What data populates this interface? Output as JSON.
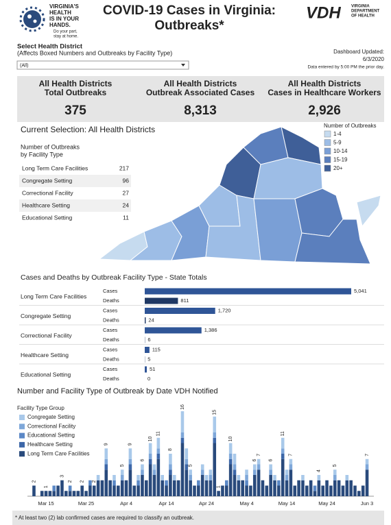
{
  "header": {
    "logo_lines": [
      "VIRGINIA'S",
      "HEALTH",
      "IS IN YOUR",
      "HANDS."
    ],
    "logo_tagline": [
      "Do your part,",
      "stay at home."
    ],
    "title_lines": [
      "COVID-19 Cases in Virginia:",
      "Outbreaks*"
    ],
    "vdh": "VDH",
    "vdh_lines": [
      "VIRGINIA",
      "DEPARTMENT",
      "OF HEALTH"
    ]
  },
  "filter": {
    "label": "Select Health District",
    "note": "(Affects Boxed Numbers and Outbreaks by Facility Type)",
    "selected": "(All)"
  },
  "updated": {
    "label": "Dashboard Updated:",
    "date": "6/3/2020",
    "note": "Data entered by 5:00 PM the prior day."
  },
  "kpis": [
    {
      "label_lines": [
        "All Health Districts",
        "Total Outbreaks"
      ],
      "value": 375
    },
    {
      "label_lines": [
        "All Health Districts",
        "Outbreak Associated Cases"
      ],
      "value": 8313,
      "label": "8,313"
    },
    {
      "label_lines": [
        "All Health Districts",
        "Cases in Healthcare Workers"
      ],
      "value": 2926,
      "label": "2,926"
    }
  ],
  "selection": "Current Selection: All Health Districts",
  "outbreak_table": {
    "title_lines": [
      "Number of Outbreaks",
      "by Facility Type"
    ],
    "rows": [
      [
        "Long Term Care Facilities",
        217
      ],
      [
        "Congregate Setting",
        96
      ],
      [
        "Correctional Facility",
        27
      ],
      [
        "Healthcare Setting",
        24
      ],
      [
        "Educational Setting",
        11
      ]
    ]
  },
  "map": {
    "title": "Number of Outbreaks",
    "legend": [
      {
        "label": "1-4",
        "color": "#c6dbef"
      },
      {
        "label": "5-9",
        "color": "#9dbde6"
      },
      {
        "label": "10-14",
        "color": "#7a9fd6"
      },
      {
        "label": "15-19",
        "color": "#5b7fbd"
      },
      {
        "label": "20+",
        "color": "#3f5f98"
      }
    ]
  },
  "chart_data": [
    {
      "type": "hbar",
      "title": "Cases and Deaths by Outbreak Facility Type - State Totals",
      "categories": [
        "Long Term Care Facilities",
        "Congregate Setting",
        "Correctional Facility",
        "Healthcare Setting",
        "Educational Setting"
      ],
      "series": [
        {
          "name": "Cases",
          "color": "#2f5597",
          "values": [
            5041,
            1720,
            1386,
            115,
            51
          ],
          "value_labels": [
            "5,041",
            "1,720",
            "1,386",
            "115",
            "51"
          ]
        },
        {
          "name": "Deaths",
          "color": "#1f3864",
          "values": [
            811,
            24,
            6,
            5,
            0
          ]
        }
      ]
    },
    {
      "type": "stacked_bar",
      "title": "Number and Facility Type of Outbreak by Date VDH Notified",
      "legend_title": "Facility Type Group",
      "categories": [
        null,
        null,
        null,
        "Mar 15",
        null,
        null,
        null,
        null,
        null,
        null,
        null,
        null,
        null,
        "Mar 25",
        null,
        null,
        null,
        null,
        null,
        null,
        null,
        null,
        null,
        "Apr 4",
        null,
        null,
        null,
        null,
        null,
        null,
        null,
        null,
        null,
        "Apr 14",
        null,
        null,
        null,
        null,
        null,
        null,
        null,
        null,
        null,
        "Apr 24",
        null,
        null,
        null,
        null,
        null,
        null,
        null,
        null,
        null,
        "May 4",
        null,
        null,
        null,
        null,
        null,
        null,
        null,
        null,
        null,
        "May 14",
        null,
        null,
        null,
        null,
        null,
        null,
        null,
        null,
        null,
        "May 24",
        null,
        null,
        null,
        null,
        null,
        null,
        null,
        null,
        null,
        "Jun 3"
      ],
      "series": [
        {
          "name": "Congregate Setting",
          "color": "#a9c9ea",
          "values": [
            0,
            0,
            0,
            0,
            0,
            0,
            0,
            0,
            0,
            0,
            0,
            0,
            0,
            0,
            0,
            0,
            1,
            0,
            2,
            0,
            1,
            0,
            1,
            0,
            2,
            0,
            1,
            1,
            0,
            2,
            1,
            2,
            1,
            0,
            2,
            1,
            0,
            4,
            2,
            1,
            0,
            0,
            1,
            1,
            1,
            3,
            0,
            0,
            0,
            2,
            2,
            1,
            0,
            1,
            0,
            1,
            1,
            0,
            0,
            1,
            1,
            0,
            2,
            1,
            1,
            0,
            0,
            1,
            0,
            0,
            0,
            1,
            0,
            0,
            0,
            1,
            0,
            0,
            1,
            0,
            0,
            0,
            0,
            1
          ]
        },
        {
          "name": "Correctional Facility",
          "color": "#7ea7d9",
          "values": [
            0,
            0,
            0,
            0,
            0,
            0,
            0,
            0,
            0,
            0,
            0,
            0,
            0,
            0,
            0,
            0,
            0,
            0,
            1,
            0,
            0,
            0,
            1,
            0,
            1,
            0,
            0,
            1,
            0,
            1,
            1,
            1,
            0,
            0,
            1,
            0,
            0,
            1,
            1,
            1,
            0,
            0,
            1,
            0,
            1,
            1,
            0,
            0,
            0,
            1,
            1,
            0,
            0,
            1,
            0,
            1,
            1,
            0,
            0,
            1,
            0,
            0,
            1,
            1,
            1,
            0,
            0,
            0,
            0,
            0,
            0,
            0,
            0,
            0,
            0,
            1,
            0,
            0,
            0,
            0,
            0,
            0,
            0,
            1
          ]
        },
        {
          "name": "Educational Setting",
          "color": "#5b88c6",
          "values": [
            0,
            0,
            0,
            0,
            0,
            1,
            0,
            0,
            0,
            1,
            0,
            0,
            0,
            0,
            1,
            0,
            0,
            0,
            0,
            0,
            1,
            0,
            0,
            0,
            0,
            0,
            1,
            0,
            0,
            0,
            0,
            0,
            0,
            1,
            0,
            0,
            0,
            0,
            0,
            0,
            0,
            1,
            0,
            0,
            0,
            0,
            0,
            0,
            1,
            0,
            0,
            0,
            0,
            1,
            0,
            0,
            0,
            0,
            0,
            0,
            0,
            1,
            0,
            0,
            0,
            0,
            0,
            0,
            0,
            0,
            1,
            0,
            0,
            0,
            0,
            0,
            0,
            0,
            0,
            0,
            0,
            0,
            0,
            0
          ]
        },
        {
          "name": "Healthcare Setting",
          "color": "#3d67a8",
          "values": [
            0,
            0,
            0,
            0,
            0,
            0,
            0,
            0,
            0,
            0,
            0,
            0,
            0,
            0,
            0,
            0,
            0,
            0,
            1,
            0,
            0,
            0,
            0,
            0,
            1,
            0,
            0,
            0,
            0,
            1,
            0,
            1,
            0,
            0,
            1,
            0,
            0,
            1,
            1,
            0,
            0,
            0,
            0,
            0,
            0,
            1,
            0,
            0,
            0,
            1,
            1,
            0,
            0,
            0,
            0,
            0,
            0,
            0,
            0,
            0,
            0,
            0,
            1,
            0,
            0,
            0,
            0,
            0,
            0,
            0,
            0,
            0,
            0,
            0,
            0,
            0,
            0,
            0,
            0,
            0,
            0,
            0,
            0,
            0
          ]
        },
        {
          "name": "Long Term Care Facilities",
          "color": "#294a7c",
          "values": [
            2,
            0,
            1,
            1,
            1,
            1,
            2,
            3,
            1,
            1,
            1,
            1,
            2,
            1,
            2,
            2,
            3,
            3,
            5,
            3,
            2,
            2,
            3,
            3,
            5,
            2,
            2,
            4,
            3,
            6,
            4,
            7,
            3,
            2,
            4,
            3,
            3,
            10,
            5,
            3,
            2,
            2,
            4,
            3,
            3,
            10,
            1,
            2,
            2,
            6,
            4,
            3,
            3,
            2,
            2,
            4,
            5,
            3,
            2,
            4,
            3,
            2,
            7,
            3,
            5,
            2,
            3,
            3,
            2,
            3,
            1,
            3,
            2,
            3,
            2,
            3,
            3,
            2,
            3,
            3,
            2,
            1,
            2,
            5
          ]
        }
      ],
      "totals": [
        2,
        null,
        null,
        1,
        null,
        null,
        null,
        3,
        null,
        2,
        null,
        null,
        2,
        null,
        null,
        2,
        null,
        null,
        9,
        null,
        null,
        null,
        5,
        null,
        9,
        null,
        null,
        6,
        null,
        10,
        null,
        11,
        null,
        null,
        8,
        null,
        null,
        16,
        null,
        5,
        null,
        null,
        null,
        null,
        null,
        15,
        1,
        null,
        null,
        10,
        null,
        null,
        null,
        null,
        null,
        6,
        7,
        null,
        null,
        6,
        null,
        null,
        11,
        null,
        7,
        null,
        null,
        null,
        null,
        null,
        null,
        4,
        null,
        null,
        null,
        5,
        null,
        null,
        null,
        null,
        null,
        null,
        null,
        7
      ]
    }
  ],
  "footnote": "* At least two (2) lab confirmed cases are required to classify an outbreak."
}
